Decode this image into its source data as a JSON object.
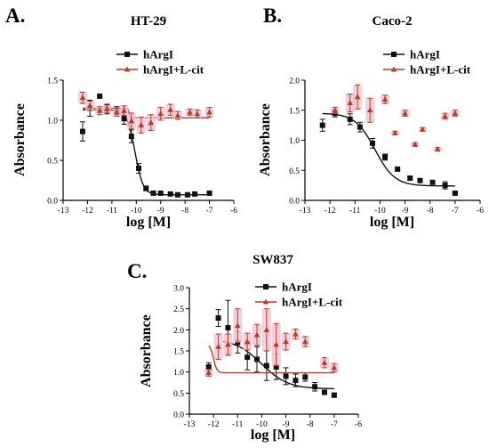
{
  "colors": {
    "hArgI": "#111111",
    "hArgI_Lcit": "#b0402a",
    "errorband": "#f3c2d0"
  },
  "chart_data": [
    {
      "type": "scatter",
      "panel_letter": "A.",
      "title": "HT-29",
      "xlabel": "log [M]",
      "ylabel": "Absorbance",
      "xlim": [
        -13,
        -6
      ],
      "ylim": [
        0,
        1.5
      ],
      "xticks": [
        "-13",
        "-12",
        "-11",
        "-10",
        "-9",
        "-8",
        "-7",
        "-6"
      ],
      "yticks": [
        "0.0",
        "0.5",
        "1.0",
        "1.5"
      ],
      "legend_position": "top-right",
      "series": [
        {
          "name": "hArgI",
          "marker": "square",
          "points": [
            [
              -12.2,
              0.86
            ],
            [
              -11.9,
              1.15
            ],
            [
              -11.5,
              1.3
            ],
            [
              -11.2,
              1.14
            ],
            [
              -10.8,
              1.12
            ],
            [
              -10.5,
              1.02
            ],
            [
              -10.2,
              0.8
            ],
            [
              -9.9,
              0.4
            ],
            [
              -9.6,
              0.15
            ],
            [
              -9.3,
              0.09
            ],
            [
              -9.0,
              0.09
            ],
            [
              -8.6,
              0.08
            ],
            [
              -8.3,
              0.07
            ],
            [
              -7.9,
              0.07
            ],
            [
              -7.6,
              0.08
            ],
            [
              -7.0,
              0.09
            ]
          ],
          "errors": [
            0.12,
            0.1,
            0.0,
            0.06,
            0.05,
            0.07,
            0.08,
            0.06,
            0.03,
            0.02,
            0.02,
            0.01,
            0.01,
            0.01,
            0.01,
            0.01
          ],
          "fit": {
            "top": 1.13,
            "bottom": 0.07,
            "logEC50": -10.05,
            "hill": 2.6,
            "x_range": [
              -12.2,
              -7.0
            ]
          }
        },
        {
          "name": "hArgI+L-cit",
          "marker": "triangle",
          "points": [
            [
              -12.2,
              1.28
            ],
            [
              -11.9,
              1.18
            ],
            [
              -11.5,
              1.12
            ],
            [
              -11.2,
              1.14
            ],
            [
              -10.8,
              1.1
            ],
            [
              -10.5,
              1.12
            ],
            [
              -10.2,
              0.99
            ],
            [
              -9.8,
              0.94
            ],
            [
              -9.4,
              0.97
            ],
            [
              -9.0,
              1.08
            ],
            [
              -8.6,
              1.13
            ],
            [
              -8.3,
              1.06
            ],
            [
              -7.8,
              1.1
            ],
            [
              -7.5,
              1.08
            ],
            [
              -7.0,
              1.1
            ]
          ],
          "errors": [
            0.07,
            0.06,
            0.05,
            0.05,
            0.05,
            0.06,
            0.1,
            0.1,
            0.1,
            0.08,
            0.07,
            0.05,
            0.04,
            0.05,
            0.06
          ],
          "fit": {
            "top": 1.15,
            "bottom": 1.03,
            "logEC50": -10.3,
            "hill": 30,
            "x_range": [
              -12.2,
              -7.0
            ]
          }
        }
      ]
    },
    {
      "type": "scatter",
      "panel_letter": "B.",
      "title": "Caco-2",
      "xlabel": "log [M]",
      "ylabel": "Absorbance",
      "xlim": [
        -13,
        -6
      ],
      "ylim": [
        0,
        2.0
      ],
      "xticks": [
        "-13",
        "-12",
        "-11",
        "-10",
        "-9",
        "-8",
        "-7",
        "-6"
      ],
      "yticks": [
        "0.0",
        "0.5",
        "1.0",
        "1.5",
        "2.0"
      ],
      "legend_position": "top-right",
      "series": [
        {
          "name": "hArgI",
          "marker": "square",
          "points": [
            [
              -12.3,
              1.25
            ],
            [
              -11.8,
              1.45
            ],
            [
              -11.2,
              1.35
            ],
            [
              -10.8,
              1.22
            ],
            [
              -10.3,
              0.95
            ],
            [
              -9.8,
              0.72
            ],
            [
              -9.3,
              0.52
            ],
            [
              -8.8,
              0.37
            ],
            [
              -8.4,
              0.33
            ],
            [
              -7.9,
              0.3
            ],
            [
              -7.4,
              0.25
            ],
            [
              -7.0,
              0.12
            ]
          ],
          "errors": [
            0.1,
            0.06,
            0.09,
            0.08,
            0.08,
            0.05,
            0.03,
            0.03,
            0.02,
            0.02,
            0.06,
            0.01
          ],
          "fit": {
            "top": 1.45,
            "bottom": 0.24,
            "logEC50": -10.2,
            "hill": 1.1,
            "x_range": [
              -12.3,
              -7.0
            ]
          }
        },
        {
          "name": "hArgI+L-cit",
          "marker": "triangle",
          "points": [
            [
              -11.8,
              1.5
            ],
            [
              -11.2,
              1.62
            ],
            [
              -10.9,
              1.72
            ],
            [
              -10.4,
              1.5
            ],
            [
              -9.8,
              1.68
            ],
            [
              -9.4,
              1.12
            ],
            [
              -9.0,
              1.45
            ],
            [
              -8.6,
              0.93
            ],
            [
              -8.3,
              1.18
            ],
            [
              -7.7,
              0.85
            ],
            [
              -7.4,
              1.4
            ],
            [
              -7.0,
              1.45
            ]
          ],
          "errors": [
            0.05,
            0.15,
            0.2,
            0.2,
            0.07,
            0.03,
            0.05,
            0.03,
            0.03,
            0.03,
            0.05,
            0.05
          ],
          "fit": null
        }
      ]
    },
    {
      "type": "scatter",
      "panel_letter": "C.",
      "title": "SW837",
      "xlabel": "log [M]",
      "ylabel": "Absorbance",
      "xlim": [
        -13,
        -6
      ],
      "ylim": [
        0,
        3.0
      ],
      "xticks": [
        "-13",
        "-12",
        "-11",
        "-10",
        "-9",
        "-8",
        "-7",
        "-6"
      ],
      "yticks": [
        "0.0",
        "0.5",
        "1.0",
        "1.5",
        "2.0",
        "2.5",
        "3.0"
      ],
      "legend_position": "top-right",
      "series": [
        {
          "name": "hArgI",
          "marker": "square",
          "points": [
            [
              -12.2,
              1.12
            ],
            [
              -11.8,
              2.28
            ],
            [
              -11.4,
              2.05
            ],
            [
              -11.0,
              1.7
            ],
            [
              -10.6,
              1.35
            ],
            [
              -10.2,
              1.3
            ],
            [
              -9.8,
              1.15
            ],
            [
              -9.4,
              1.12
            ],
            [
              -9.0,
              0.9
            ],
            [
              -8.6,
              0.8
            ],
            [
              -8.2,
              0.88
            ],
            [
              -7.8,
              0.65
            ],
            [
              -7.4,
              0.52
            ],
            [
              -7.0,
              0.45
            ]
          ],
          "errors": [
            0.1,
            0.2,
            0.65,
            0.25,
            0.3,
            0.3,
            0.35,
            0.3,
            0.2,
            0.15,
            0.1,
            0.1,
            0.05,
            0.05
          ],
          "fit": {
            "top": 1.78,
            "bottom": 0.6,
            "logEC50": -10.0,
            "hill": 0.8,
            "x_range": [
              -11.6,
              -7.0
            ]
          }
        },
        {
          "name": "hArgI+L-cit",
          "marker": "triangle",
          "points": [
            [
              -12.2,
              0.98
            ],
            [
              -11.8,
              1.6
            ],
            [
              -11.4,
              1.65
            ],
            [
              -11.0,
              2.1
            ],
            [
              -10.6,
              1.72
            ],
            [
              -10.2,
              1.88
            ],
            [
              -9.8,
              2.0
            ],
            [
              -9.4,
              1.65
            ],
            [
              -9.0,
              1.72
            ],
            [
              -8.6,
              1.9
            ],
            [
              -8.2,
              1.72
            ],
            [
              -7.4,
              1.22
            ],
            [
              -7.0,
              1.1
            ]
          ],
          "errors": [
            0.08,
            0.3,
            0.25,
            0.4,
            0.2,
            0.25,
            0.5,
            0.5,
            0.2,
            0.12,
            0.12,
            0.12,
            0.1
          ],
          "fit": {
            "top": 1.66,
            "bottom": 0.98,
            "logEC50": -12.0,
            "hill": 6,
            "x_range": [
              -12.2,
              -7.0
            ]
          }
        }
      ]
    }
  ]
}
